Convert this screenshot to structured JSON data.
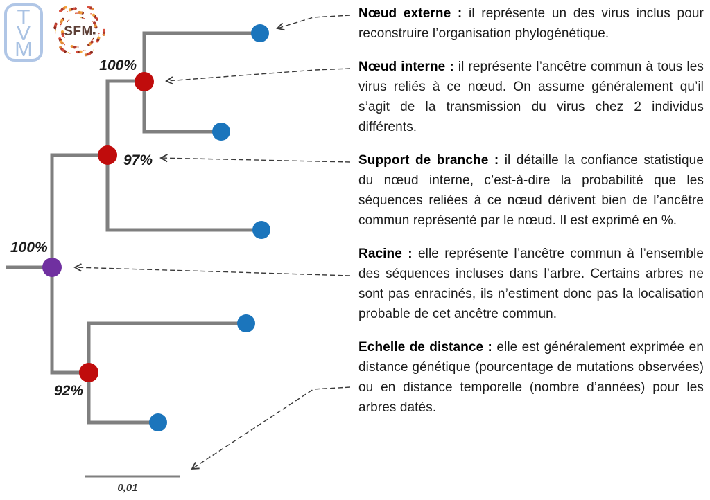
{
  "header": {
    "logos": {
      "tvm": {
        "letters": [
          "T",
          "V",
          "M"
        ]
      },
      "sfm": {
        "label": "SFM"
      }
    }
  },
  "tree": {
    "support_labels": {
      "top_clade": "100%",
      "mid_clade": "97%",
      "root": "100%",
      "bottom_clade": "92%"
    },
    "scale_bar_label": "0,01",
    "colors": {
      "branch": "#7f7f7f",
      "external_node": "#1b75bc",
      "internal_node": "#c00c0c",
      "root_node": "#7030a0",
      "arrow": "#3a3a3a"
    }
  },
  "annotations": [
    {
      "term": "Nœud externe :",
      "desc": "il représente un des virus inclus pour reconstruire l’organisation phylogénétique."
    },
    {
      "term": "Nœud interne :",
      "desc": "il représente l’ancêtre commun à tous les virus reliés à ce nœud. On assume généralement qu’il s’agit de la transmission du virus chez 2 individus différents."
    },
    {
      "term": "Support de branche :",
      "desc": "il détaille la confiance statistique du nœud interne, c’est-à-dire la probabilité que les séquences reliées à ce nœud dérivent bien de l’ancêtre commun représenté par le nœud. Il est exprimé en %."
    },
    {
      "term": "Racine :",
      "desc": "elle représente l’ancêtre commun à l’ensemble des séquences incluses dans l’arbre. Certains arbres ne sont pas enracinés, ils n’estiment donc pas la localisation probable de cet ancêtre commun."
    },
    {
      "term": "Echelle de distance :",
      "desc": "elle est généralement exprimée en distance génétique (pourcentage de mutations observées) ou en distance temporelle (nombre d’années) pour les arbres datés."
    }
  ]
}
